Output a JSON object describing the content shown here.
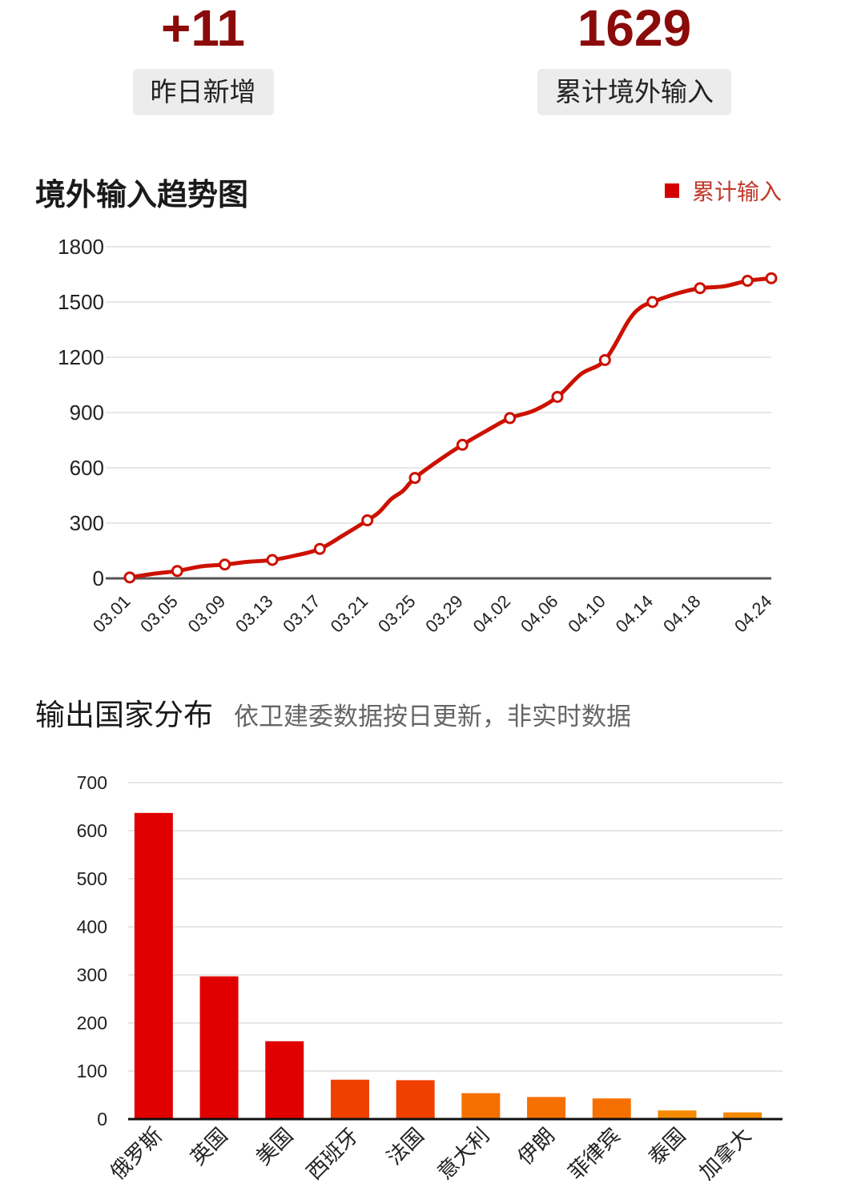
{
  "stats": {
    "new": {
      "value": "+11",
      "label": "昨日新增"
    },
    "total": {
      "value": "1629",
      "label": "累计境外输入"
    }
  },
  "trend": {
    "title": "境外输入趋势图",
    "legend": "累计输入",
    "color": "#cc1100"
  },
  "distribution": {
    "title": "输出国家分布",
    "note": "依卫建委数据按日更新，非实时数据"
  },
  "chart_data": [
    {
      "type": "line",
      "title": "境外输入趋势图",
      "series": [
        {
          "name": "累计输入"
        }
      ],
      "ylim": [
        0,
        1800
      ],
      "yticks": [
        0,
        300,
        600,
        900,
        1200,
        1500,
        1800
      ],
      "xticks": [
        "03.01",
        "03.05",
        "03.09",
        "03.13",
        "03.17",
        "03.21",
        "03.25",
        "03.29",
        "04.02",
        "04.06",
        "04.10",
        "04.14",
        "04.18",
        "04.24"
      ],
      "markers": [
        {
          "x": "03.01",
          "y": 5
        },
        {
          "x": "03.05",
          "y": 40
        },
        {
          "x": "03.09",
          "y": 75
        },
        {
          "x": "03.13",
          "y": 100
        },
        {
          "x": "03.17",
          "y": 160
        },
        {
          "x": "03.21",
          "y": 315
        },
        {
          "x": "03.25",
          "y": 545
        },
        {
          "x": "03.29",
          "y": 725
        },
        {
          "x": "04.02",
          "y": 870
        },
        {
          "x": "04.06",
          "y": 985
        },
        {
          "x": "04.10",
          "y": 1185
        },
        {
          "x": "04.14",
          "y": 1500
        },
        {
          "x": "04.18",
          "y": 1575
        },
        {
          "x": "04.22",
          "y": 1615
        },
        {
          "x": "04.24",
          "y": 1629
        }
      ],
      "curve": [
        {
          "x": "03.01",
          "y": 5
        },
        {
          "x": "03.03",
          "y": 25
        },
        {
          "x": "03.05",
          "y": 40
        },
        {
          "x": "03.07",
          "y": 65
        },
        {
          "x": "03.09",
          "y": 75
        },
        {
          "x": "03.11",
          "y": 90
        },
        {
          "x": "03.13",
          "y": 100
        },
        {
          "x": "03.15",
          "y": 125
        },
        {
          "x": "03.17",
          "y": 160
        },
        {
          "x": "03.19",
          "y": 235
        },
        {
          "x": "03.21",
          "y": 315
        },
        {
          "x": "03.22",
          "y": 360
        },
        {
          "x": "03.23",
          "y": 430
        },
        {
          "x": "03.24",
          "y": 475
        },
        {
          "x": "03.25",
          "y": 545
        },
        {
          "x": "03.27",
          "y": 640
        },
        {
          "x": "03.29",
          "y": 725
        },
        {
          "x": "03.31",
          "y": 800
        },
        {
          "x": "04.02",
          "y": 870
        },
        {
          "x": "04.04",
          "y": 910
        },
        {
          "x": "04.06",
          "y": 985
        },
        {
          "x": "04.08",
          "y": 1110
        },
        {
          "x": "04.10",
          "y": 1185
        },
        {
          "x": "04.12",
          "y": 1400
        },
        {
          "x": "04.13",
          "y": 1470
        },
        {
          "x": "04.14",
          "y": 1500
        },
        {
          "x": "04.16",
          "y": 1545
        },
        {
          "x": "04.18",
          "y": 1575
        },
        {
          "x": "04.20",
          "y": 1585
        },
        {
          "x": "04.22",
          "y": 1615
        },
        {
          "x": "04.24",
          "y": 1629
        }
      ],
      "grid": true
    },
    {
      "type": "bar",
      "title": "输出国家分布",
      "categories": [
        "俄罗斯",
        "英国",
        "美国",
        "西班牙",
        "法国",
        "意大利",
        "伊朗",
        "菲律宾",
        "泰国",
        "加拿大"
      ],
      "values": [
        637,
        297,
        162,
        82,
        81,
        54,
        46,
        43,
        18,
        14
      ],
      "colors": [
        "#e00000",
        "#e00000",
        "#e00000",
        "#f04000",
        "#f04000",
        "#f57000",
        "#f57000",
        "#f57000",
        "#f58a00",
        "#f58a00"
      ],
      "ylim": [
        0,
        700
      ],
      "yticks": [
        0,
        100,
        200,
        300,
        400,
        500,
        600,
        700
      ],
      "grid": true
    }
  ]
}
